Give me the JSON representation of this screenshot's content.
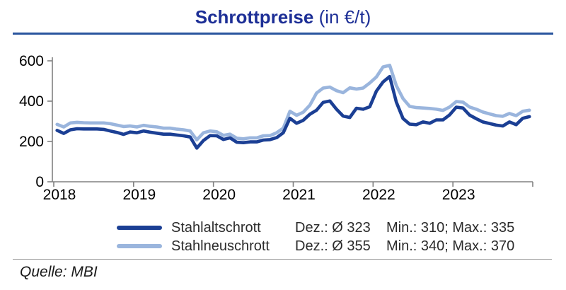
{
  "title": {
    "main": "Schrottpreise",
    "unit": " (in €/t)"
  },
  "source": "Quelle: MBI",
  "colors": {
    "accent_navy": "#1d2f96",
    "rule_navy": "#2a549e",
    "axis_gray": "#808080",
    "dark_series": "#1b3f94",
    "light_series": "#9ab5dd"
  },
  "legend": [
    {
      "name": "Stahlaltschrott",
      "color": "#1b3f94",
      "dez": "Dez.: Ø 323",
      "minmax": "Min.: 310; Max.: 335"
    },
    {
      "name": "Stahlneuschrott",
      "color": "#9ab5dd",
      "dez": "Dez.: Ø 355",
      "minmax": "Min.: 340; Max.: 370"
    }
  ],
  "chart_data": {
    "type": "line",
    "title": "Schrottpreise (in €/t)",
    "x_unit": "month",
    "x_range": [
      "2018-01",
      "2023-12"
    ],
    "x_tick_labels": [
      "2018",
      "2019",
      "2020",
      "2021",
      "2022",
      "2023"
    ],
    "y_ticks": [
      0,
      200,
      400,
      600
    ],
    "ylim": [
      0,
      600
    ],
    "grid": false,
    "legend_position": "bottom",
    "series": [
      {
        "name": "Stahlaltschrott",
        "color": "#1b3f94",
        "values": [
          255,
          240,
          258,
          263,
          262,
          262,
          262,
          260,
          252,
          245,
          235,
          247,
          243,
          252,
          246,
          241,
          236,
          236,
          232,
          228,
          222,
          167,
          205,
          229,
          228,
          210,
          218,
          196,
          194,
          198,
          198,
          207,
          209,
          219,
          243,
          315,
          290,
          305,
          335,
          355,
          394,
          401,
          360,
          326,
          319,
          365,
          360,
          372,
          450,
          495,
          522,
          395,
          314,
          286,
          283,
          297,
          290,
          307,
          307,
          332,
          370,
          366,
          331,
          313,
          297,
          289,
          281,
          277,
          297,
          283,
          315,
          323
        ]
      },
      {
        "name": "Stahlneuschrott",
        "color": "#9ab5dd",
        "values": [
          285,
          272,
          292,
          295,
          293,
          292,
          292,
          292,
          288,
          281,
          274,
          277,
          272,
          280,
          275,
          272,
          266,
          266,
          261,
          258,
          252,
          208,
          243,
          252,
          248,
          230,
          236,
          216,
          213,
          218,
          218,
          228,
          229,
          243,
          266,
          350,
          330,
          345,
          380,
          440,
          465,
          470,
          452,
          442,
          466,
          460,
          465,
          490,
          520,
          570,
          578,
          477,
          413,
          374,
          368,
          366,
          364,
          360,
          354,
          371,
          398,
          395,
          371,
          360,
          346,
          337,
          328,
          325,
          339,
          328,
          350,
          355
        ]
      }
    ]
  }
}
